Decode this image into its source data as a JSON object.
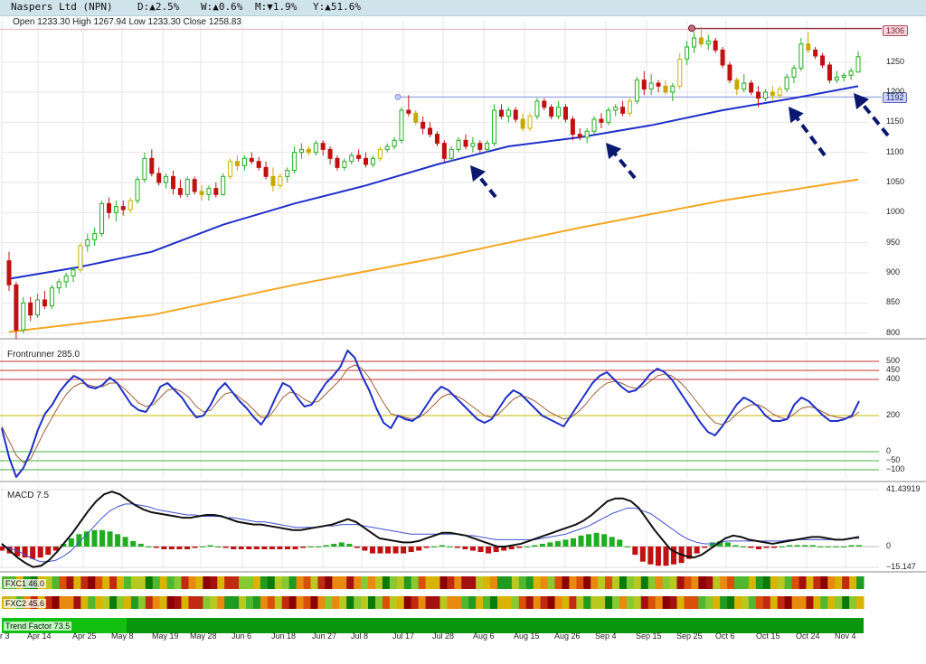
{
  "header": {
    "title": "Naspers Ltd (NPN)",
    "d": "D:▲2.5%",
    "w": "W:▲0.6%",
    "m": "M:▼1.9%",
    "y": "Y:▲51.6%",
    "colors": {
      "up": "#1a8a1a",
      "down": "#cc0000"
    }
  },
  "ohlc": "Open 1233.30  High 1267.94  Low 1233.30  Close 1258.83",
  "price_flags": {
    "top": "1306",
    "mid": "1192"
  },
  "panels": {
    "frontrunner": "Frontrunner 285.0",
    "macd": "MACD 7.5",
    "fxc1": "FXC1 46.0",
    "fxc2": "FXC2 45.6",
    "trend": "Trend Factor 73.5"
  },
  "chart_data": {
    "type": "line",
    "title": "Naspers Ltd (NPN)",
    "x_labels": [
      "r 3",
      "Apr 14",
      "Apr 25",
      "May 8",
      "May 19",
      "May 28",
      "Jun 6",
      "Jun 18",
      "Jun 27",
      "Jul 8",
      "Jul 17",
      "Jul 28",
      "Aug 6",
      "Aug 15",
      "Aug 26",
      "Sep 4",
      "Sep 15",
      "Sep 25",
      "Oct 6",
      "Oct 15",
      "Oct 24",
      "Nov 4"
    ],
    "price_axis": {
      "ticks": [
        "1250",
        "1200",
        "1150",
        "1100",
        "1050",
        "1000",
        "950",
        "900",
        "850",
        "800"
      ],
      "ylim": [
        795,
        1320
      ]
    },
    "horizontal_levels": [
      1306,
      1192
    ],
    "candles": [
      [
        920,
        935,
        870,
        880
      ],
      [
        880,
        885,
        790,
        805
      ],
      [
        805,
        860,
        800,
        850
      ],
      [
        850,
        860,
        820,
        830
      ],
      [
        830,
        865,
        825,
        855
      ],
      [
        855,
        870,
        840,
        845
      ],
      [
        845,
        880,
        840,
        875
      ],
      [
        875,
        890,
        865,
        885
      ],
      [
        885,
        900,
        875,
        895
      ],
      [
        895,
        910,
        885,
        905
      ],
      [
        905,
        950,
        900,
        945
      ],
      [
        945,
        965,
        935,
        955
      ],
      [
        955,
        975,
        945,
        965
      ],
      [
        965,
        1020,
        960,
        1015
      ],
      [
        1015,
        1025,
        990,
        1000
      ],
      [
        1000,
        1020,
        985,
        1010
      ],
      [
        1010,
        1020,
        995,
        1005
      ],
      [
        1005,
        1025,
        1000,
        1020
      ],
      [
        1020,
        1060,
        1015,
        1055
      ],
      [
        1055,
        1100,
        1050,
        1090
      ],
      [
        1090,
        1105,
        1060,
        1065
      ],
      [
        1065,
        1075,
        1045,
        1050
      ],
      [
        1050,
        1065,
        1040,
        1060
      ],
      [
        1060,
        1070,
        1030,
        1040
      ],
      [
        1040,
        1055,
        1025,
        1030
      ],
      [
        1030,
        1060,
        1025,
        1055
      ],
      [
        1055,
        1060,
        1030,
        1035
      ],
      [
        1035,
        1045,
        1020,
        1030
      ],
      [
        1030,
        1045,
        1020,
        1040
      ],
      [
        1040,
        1050,
        1025,
        1030
      ],
      [
        1030,
        1065,
        1028,
        1060
      ],
      [
        1060,
        1090,
        1055,
        1085
      ],
      [
        1085,
        1095,
        1070,
        1078
      ],
      [
        1078,
        1095,
        1070,
        1090
      ],
      [
        1090,
        1100,
        1080,
        1085
      ],
      [
        1085,
        1092,
        1070,
        1075
      ],
      [
        1075,
        1085,
        1055,
        1060
      ],
      [
        1060,
        1075,
        1035,
        1045
      ],
      [
        1045,
        1065,
        1040,
        1060
      ],
      [
        1060,
        1075,
        1050,
        1070
      ],
      [
        1070,
        1110,
        1065,
        1100
      ],
      [
        1100,
        1115,
        1090,
        1105
      ],
      [
        1105,
        1110,
        1095,
        1100
      ],
      [
        1100,
        1120,
        1095,
        1115
      ],
      [
        1115,
        1120,
        1095,
        1105
      ],
      [
        1105,
        1110,
        1080,
        1090
      ],
      [
        1090,
        1095,
        1070,
        1075
      ],
      [
        1075,
        1090,
        1070,
        1085
      ],
      [
        1085,
        1100,
        1080,
        1095
      ],
      [
        1095,
        1105,
        1085,
        1090
      ],
      [
        1090,
        1100,
        1075,
        1080
      ],
      [
        1080,
        1095,
        1075,
        1090
      ],
      [
        1090,
        1110,
        1085,
        1105
      ],
      [
        1105,
        1115,
        1100,
        1110
      ],
      [
        1110,
        1125,
        1105,
        1120
      ],
      [
        1120,
        1175,
        1115,
        1170
      ],
      [
        1170,
        1195,
        1160,
        1165
      ],
      [
        1165,
        1170,
        1145,
        1150
      ],
      [
        1150,
        1160,
        1130,
        1140
      ],
      [
        1140,
        1150,
        1125,
        1130
      ],
      [
        1130,
        1135,
        1110,
        1115
      ],
      [
        1115,
        1120,
        1085,
        1090
      ],
      [
        1090,
        1110,
        1085,
        1105
      ],
      [
        1105,
        1125,
        1100,
        1120
      ],
      [
        1120,
        1130,
        1105,
        1110
      ],
      [
        1110,
        1125,
        1100,
        1115
      ],
      [
        1115,
        1120,
        1100,
        1105
      ],
      [
        1105,
        1120,
        1100,
        1115
      ],
      [
        1115,
        1180,
        1110,
        1170
      ],
      [
        1170,
        1180,
        1155,
        1160
      ],
      [
        1160,
        1175,
        1150,
        1170
      ],
      [
        1170,
        1175,
        1150,
        1155
      ],
      [
        1155,
        1165,
        1135,
        1140
      ],
      [
        1140,
        1165,
        1135,
        1160
      ],
      [
        1160,
        1190,
        1155,
        1185
      ],
      [
        1185,
        1190,
        1170,
        1175
      ],
      [
        1175,
        1180,
        1155,
        1160
      ],
      [
        1160,
        1185,
        1155,
        1175
      ],
      [
        1175,
        1180,
        1150,
        1155
      ],
      [
        1155,
        1160,
        1120,
        1130
      ],
      [
        1130,
        1140,
        1120,
        1125
      ],
      [
        1125,
        1140,
        1115,
        1135
      ],
      [
        1135,
        1160,
        1130,
        1155
      ],
      [
        1155,
        1165,
        1140,
        1150
      ],
      [
        1150,
        1175,
        1145,
        1170
      ],
      [
        1170,
        1180,
        1160,
        1175
      ],
      [
        1175,
        1185,
        1160,
        1165
      ],
      [
        1165,
        1190,
        1160,
        1185
      ],
      [
        1185,
        1225,
        1180,
        1220
      ],
      [
        1220,
        1235,
        1195,
        1205
      ],
      [
        1205,
        1230,
        1195,
        1215
      ],
      [
        1215,
        1220,
        1200,
        1210
      ],
      [
        1210,
        1220,
        1195,
        1200
      ],
      [
        1200,
        1215,
        1185,
        1210
      ],
      [
        1210,
        1265,
        1205,
        1255
      ],
      [
        1255,
        1285,
        1245,
        1275
      ],
      [
        1275,
        1300,
        1265,
        1290
      ],
      [
        1290,
        1308,
        1275,
        1280
      ],
      [
        1280,
        1295,
        1270,
        1285
      ],
      [
        1285,
        1290,
        1265,
        1270
      ],
      [
        1270,
        1275,
        1240,
        1245
      ],
      [
        1245,
        1250,
        1215,
        1220
      ],
      [
        1220,
        1225,
        1195,
        1205
      ],
      [
        1205,
        1230,
        1200,
        1215
      ],
      [
        1215,
        1220,
        1195,
        1200
      ],
      [
        1200,
        1210,
        1175,
        1190
      ],
      [
        1190,
        1205,
        1185,
        1200
      ],
      [
        1200,
        1210,
        1185,
        1195
      ],
      [
        1195,
        1210,
        1190,
        1205
      ],
      [
        1205,
        1230,
        1200,
        1225
      ],
      [
        1225,
        1245,
        1215,
        1240
      ],
      [
        1240,
        1290,
        1235,
        1280
      ],
      [
        1280,
        1300,
        1265,
        1270
      ],
      [
        1270,
        1275,
        1255,
        1260
      ],
      [
        1260,
        1265,
        1240,
        1245
      ],
      [
        1245,
        1250,
        1215,
        1220
      ],
      [
        1220,
        1235,
        1215,
        1225
      ],
      [
        1225,
        1232,
        1218,
        1228
      ],
      [
        1228,
        1240,
        1220,
        1235
      ],
      [
        1233.3,
        1267.94,
        1233.3,
        1258.83
      ]
    ],
    "ma_blue": {
      "x": [
        0,
        10,
        20,
        30,
        40,
        50,
        60,
        70,
        80,
        90,
        100,
        110,
        119
      ],
      "y": [
        890,
        910,
        935,
        980,
        1015,
        1045,
        1080,
        1110,
        1125,
        1145,
        1170,
        1190,
        1210
      ]
    },
    "ma_orange": {
      "x": [
        0,
        20,
        40,
        60,
        80,
        100,
        119
      ],
      "y": [
        802,
        830,
        880,
        925,
        975,
        1020,
        1055
      ]
    },
    "frontrunner": {
      "yticks": [
        "500",
        "450",
        "400",
        "200",
        "0",
        "−50",
        "−100"
      ],
      "levels": [
        500,
        450,
        400,
        200,
        0,
        -50,
        -100
      ],
      "fast": [
        130,
        -30,
        -140,
        -90,
        0,
        120,
        210,
        260,
        330,
        380,
        420,
        400,
        360,
        350,
        370,
        410,
        380,
        320,
        260,
        230,
        220,
        280,
        360,
        380,
        340,
        300,
        240,
        190,
        200,
        260,
        340,
        380,
        330,
        280,
        240,
        190,
        150,
        210,
        300,
        380,
        360,
        300,
        250,
        260,
        320,
        380,
        420,
        470,
        560,
        520,
        420,
        340,
        240,
        160,
        130,
        200,
        180,
        170,
        200,
        260,
        320,
        360,
        340,
        300,
        260,
        220,
        180,
        160,
        180,
        240,
        300,
        340,
        320,
        280,
        240,
        200,
        180,
        160,
        140,
        200,
        260,
        320,
        380,
        420,
        440,
        400,
        360,
        330,
        340,
        380,
        430,
        460,
        440,
        400,
        340,
        280,
        220,
        160,
        110,
        90,
        140,
        200,
        260,
        300,
        280,
        250,
        200,
        170,
        170,
        180,
        260,
        300,
        280,
        240,
        200,
        170,
        170,
        180,
        200,
        280
      ],
      "slow": [
        140,
        60,
        -20,
        -60,
        -40,
        40,
        120,
        190,
        260,
        320,
        360,
        380,
        370,
        360,
        360,
        380,
        380,
        350,
        310,
        270,
        250,
        260,
        300,
        340,
        350,
        330,
        300,
        250,
        220,
        230,
        280,
        320,
        330,
        300,
        270,
        230,
        190,
        190,
        240,
        300,
        330,
        320,
        290,
        270,
        280,
        320,
        360,
        400,
        460,
        480,
        460,
        410,
        340,
        270,
        210,
        200,
        190,
        180,
        190,
        220,
        260,
        300,
        320,
        310,
        290,
        260,
        230,
        200,
        190,
        210,
        250,
        290,
        310,
        300,
        280,
        250,
        220,
        200,
        180,
        190,
        220,
        260,
        310,
        350,
        380,
        390,
        380,
        360,
        350,
        360,
        390,
        420,
        430,
        420,
        390,
        350,
        300,
        250,
        200,
        160,
        150,
        170,
        210,
        240,
        260,
        260,
        240,
        210,
        190,
        180,
        210,
        240,
        250,
        240,
        220,
        200,
        190,
        185,
        190,
        220
      ]
    },
    "macd": {
      "ylim": [
        -15.147,
        41.43919
      ],
      "yticks": [
        "41.43919",
        "0",
        "−15.147"
      ],
      "line": [
        2,
        -3,
        -8,
        -12,
        -15,
        -14,
        -10,
        -4,
        3,
        10,
        18,
        26,
        33,
        38,
        40,
        38,
        34,
        30,
        27,
        25,
        24,
        23,
        22,
        21,
        21,
        22,
        23,
        23,
        22,
        20,
        18,
        17,
        16,
        16,
        15,
        14,
        13,
        12,
        12,
        13,
        14,
        15,
        16,
        18,
        20,
        18,
        14,
        10,
        6,
        5,
        4,
        3,
        3,
        4,
        6,
        8,
        10,
        10,
        9,
        8,
        6,
        4,
        2,
        0,
        0,
        1,
        2,
        4,
        6,
        8,
        10,
        12,
        14,
        16,
        19,
        23,
        28,
        33,
        35,
        35,
        33,
        28,
        20,
        12,
        5,
        -2,
        -5,
        -7,
        -8,
        -6,
        -2,
        2,
        6,
        8,
        7,
        5,
        4,
        3,
        2,
        3,
        4,
        5,
        6,
        7,
        7,
        6,
        5,
        5,
        6,
        7
      ],
      "signal": [
        1,
        -1,
        -3,
        -6,
        -9,
        -11,
        -11,
        -10,
        -7,
        -3,
        3,
        9,
        15,
        21,
        26,
        29,
        31,
        31,
        30,
        29,
        27,
        26,
        25,
        24,
        23,
        23,
        22,
        22,
        22,
        21,
        21,
        20,
        19,
        18,
        18,
        17,
        16,
        15,
        14,
        14,
        14,
        14,
        15,
        15,
        16,
        16,
        16,
        15,
        14,
        13,
        12,
        11,
        10,
        9,
        9,
        9,
        9,
        9,
        9,
        9,
        8,
        8,
        7,
        6,
        5,
        5,
        5,
        5,
        5,
        5,
        6,
        7,
        8,
        9,
        11,
        13,
        15,
        18,
        21,
        24,
        26,
        28,
        28,
        26,
        24,
        20,
        16,
        12,
        8,
        5,
        3,
        2,
        2,
        3,
        4,
        4,
        4,
        4,
        4,
        4,
        4,
        4,
        5,
        5,
        5,
        5,
        5,
        5,
        5,
        5,
        6,
        6
      ],
      "hist": [
        -3,
        -5,
        -7,
        -8,
        -9,
        -8,
        -6,
        -3,
        2,
        6,
        9,
        11,
        12,
        12,
        11,
        9,
        7,
        4,
        2,
        0,
        -1,
        -2,
        -2,
        -2,
        -2,
        -1,
        0,
        1,
        0,
        -1,
        -2,
        -2,
        -2,
        -2,
        -2,
        -2,
        -2,
        -2,
        -2,
        -1,
        0,
        0,
        1,
        2,
        3,
        2,
        -1,
        -3,
        -5,
        -5,
        -5,
        -5,
        -5,
        -4,
        -3,
        -1,
        0,
        1,
        0,
        -1,
        -2,
        -3,
        -4,
        -5,
        -4,
        -3,
        -2,
        -1,
        0,
        1,
        2,
        3,
        4,
        5,
        6,
        8,
        9,
        10,
        9,
        7,
        5,
        0,
        -6,
        -11,
        -13,
        -14,
        -14,
        -13,
        -12,
        -9,
        -5,
        -1,
        3,
        4,
        3,
        1,
        0,
        -1,
        -2,
        -1,
        -1,
        0,
        1,
        1,
        1,
        1,
        0,
        0,
        0,
        0,
        1,
        1
      ]
    }
  }
}
